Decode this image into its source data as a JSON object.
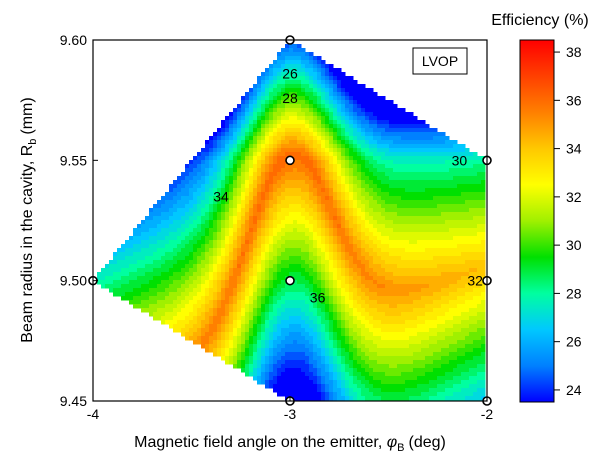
{
  "chart_data": {
    "type": "heatmap",
    "subtype": "filled-contour",
    "title": "",
    "annotation": "LVOP",
    "xlabel": "Magnetic field angle on the emitter,",
    "xlabel_symbol": "φ",
    "xlabel_symbol_sub": "B",
    "xlabel_unit": "(deg)",
    "ylabel": "Beam radius in the cavity, R",
    "ylabel_sub": "b",
    "ylabel_unit": "(mm)",
    "xlim": [
      -4,
      -2
    ],
    "ylim": [
      9.45,
      9.6
    ],
    "x_ticks": [
      -4,
      -3,
      -2
    ],
    "x_tick_labels": [
      "-4",
      "-3",
      "-2"
    ],
    "y_ticks": [
      9.45,
      9.5,
      9.55,
      9.6
    ],
    "y_tick_labels": [
      "9.45",
      "9.50",
      "9.55",
      "9.60"
    ],
    "colorbar": {
      "title": "Efficiency (%)",
      "range": [
        23.5,
        38.5
      ],
      "ticks": [
        24,
        26,
        28,
        30,
        32,
        34,
        36,
        38
      ],
      "tick_labels": [
        "24",
        "26",
        "28",
        "30",
        "32",
        "34",
        "36",
        "38"
      ],
      "colors": [
        "#0000ff",
        "#0080ff",
        "#00c8ff",
        "#00ffa0",
        "#00e000",
        "#a0f000",
        "#ffff00",
        "#ffc800",
        "#ff8000",
        "#ff4000",
        "#ff0000"
      ]
    },
    "points": [
      {
        "x": -4,
        "y": 9.5
      },
      {
        "x": -3,
        "y": 9.45
      },
      {
        "x": -3,
        "y": 9.5
      },
      {
        "x": -3,
        "y": 9.55
      },
      {
        "x": -3,
        "y": 9.6
      },
      {
        "x": -2,
        "y": 9.45
      },
      {
        "x": -2,
        "y": 9.5
      },
      {
        "x": -2,
        "y": 9.55
      }
    ],
    "contour_labels": [
      {
        "text": "26",
        "x": -3.0,
        "y": 9.586
      },
      {
        "text": "28",
        "x": -3.0,
        "y": 9.576
      },
      {
        "text": "30",
        "x": -2.14,
        "y": 9.55
      },
      {
        "text": "32",
        "x": -2.06,
        "y": 9.5
      },
      {
        "text": "34",
        "x": -3.35,
        "y": 9.535
      },
      {
        "text": "36",
        "x": -2.86,
        "y": 9.493
      }
    ]
  }
}
